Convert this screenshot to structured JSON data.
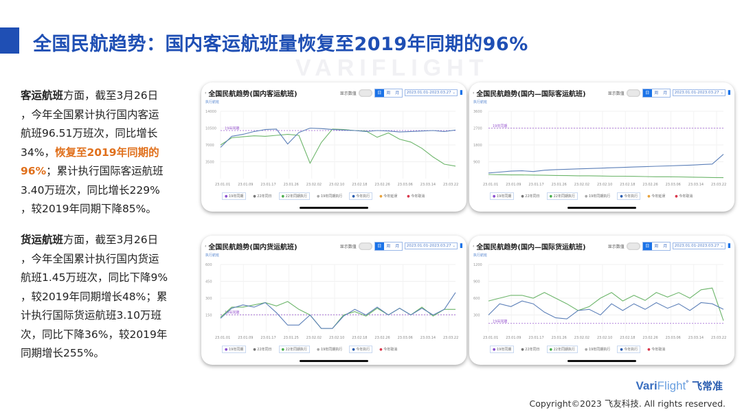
{
  "title": "全国民航趋势：国内客运航班量恢复至2019年同期的96%",
  "watermark": "VARIFLIGHT",
  "passenger_text": {
    "lines": [
      {
        "bold": "客运航班",
        "text": "方面，截至3月26日"
      },
      {
        "text": "，今年全国累计执行国内客运"
      },
      {
        "text": "航班96.51万班次，同比增长"
      },
      {
        "text": "34%，",
        "highlight": "恢复至2019年同期的"
      },
      {
        "highlight_pre": "96%",
        "text": "；累计执行国际客运航班"
      },
      {
        "text": "3.40万班次，同比增长229%"
      },
      {
        "text": "，较2019年同期下降85%。"
      }
    ]
  },
  "cargo_text": {
    "lines": [
      {
        "bold": "货运航班",
        "text": "方面，截至3月26日"
      },
      {
        "text": "，今年全国累计执行国内货运"
      },
      {
        "text": "航班1.45万班次，同比下降9%"
      },
      {
        "text": "，较2019年同期增长48%；累"
      },
      {
        "text": "计执行国际货运航班3.10万班"
      },
      {
        "text": "次，同比下降36%，较2019年"
      },
      {
        "text": "同期增长255%。"
      }
    ]
  },
  "controls": {
    "show_values": "显示数值",
    "day": "日",
    "week": "周",
    "month": "月",
    "date_range": "2023.01.01-2023.03.27 ⌄",
    "y_unit": "执行航班",
    "ref_label": "19年同期"
  },
  "legend": [
    "19年同期",
    "22年同日",
    "22年同期执行",
    "19年同期执行",
    "今年执行",
    "今年延误",
    "今年取消"
  ],
  "colors": {
    "accent": "#1f4fb4",
    "highlight": "#e0701c",
    "current": "#5b7fb8",
    "prev": "#6cb56a",
    "reference": "#9a5ad0"
  },
  "chart_data": [
    {
      "type": "line",
      "title": "全国民航趋势(国内客运航班)",
      "ylim": [
        0,
        14000
      ],
      "yticks": [
        "14000",
        "10500",
        "7000",
        "3500"
      ],
      "xticks": [
        "23.01.01",
        "23.01.09",
        "23.01.17",
        "23.01.26",
        "23.02.02",
        "23.02.10",
        "23.02.18",
        "23.02.26",
        "23.03.06",
        "23.03.14",
        "23.03.22"
      ],
      "reference": 10000,
      "series": [
        {
          "key": "current",
          "name": "今年执行",
          "values": [
            6500,
            8800,
            9200,
            9800,
            10200,
            10300,
            7200,
            9600,
            10500,
            10400,
            10200,
            10100,
            10000,
            9800,
            10000,
            9900,
            9700,
            9800,
            9900,
            10000,
            9800,
            10100
          ]
        },
        {
          "key": "prev",
          "name": "22年同期执行",
          "values": [
            7000,
            8500,
            8700,
            8900,
            8800,
            9000,
            9200,
            9000,
            3200,
            7500,
            10300,
            10200,
            10000,
            9900,
            8600,
            9500,
            8200,
            7600,
            6300,
            4500,
            3000,
            2600
          ]
        }
      ]
    },
    {
      "type": "line",
      "title": "全国民航趋势(国内—国际客运航班)",
      "ylim": [
        0,
        3600
      ],
      "yticks": [
        "3600",
        "2700",
        "1800",
        "900"
      ],
      "xticks": [
        "23.01.01",
        "23.01.09",
        "23.01.17",
        "23.01.26",
        "23.02.02",
        "23.02.10",
        "23.02.18",
        "23.02.26",
        "23.03.06",
        "23.03.14",
        "23.03.22"
      ],
      "reference": 2700,
      "series": [
        {
          "key": "current",
          "name": "今年执行",
          "values": [
            300,
            350,
            400,
            420,
            380,
            450,
            480,
            500,
            520,
            540,
            560,
            580,
            600,
            620,
            640,
            660,
            680,
            700,
            720,
            750,
            780,
            1300
          ]
        },
        {
          "key": "prev",
          "name": "22年同期执行",
          "values": [
            220,
            210,
            200,
            200,
            190,
            180,
            170,
            160,
            150,
            150,
            140,
            130,
            130,
            120,
            110,
            100,
            100,
            90,
            80,
            70,
            60,
            50
          ]
        }
      ]
    },
    {
      "type": "line",
      "title": "全国民航趋势(国内货运航班)",
      "ylim": [
        0,
        600
      ],
      "yticks": [
        "600",
        "450",
        "300",
        "150"
      ],
      "xticks": [
        "23.01.01",
        "23.01.09",
        "23.01.17",
        "23.01.25",
        "23.02.02",
        "23.02.10",
        "23.02.18",
        "23.02.26",
        "23.03.06",
        "23.03.14",
        "23.03.22"
      ],
      "reference": 152,
      "series": [
        {
          "key": "current",
          "name": "今年执行",
          "values": [
            120,
            210,
            240,
            220,
            260,
            170,
            60,
            60,
            150,
            30,
            30,
            140,
            200,
            150,
            220,
            150,
            210,
            150,
            210,
            150,
            200,
            350
          ]
        },
        {
          "key": "prev",
          "name": "22年同期执行",
          "values": [
            130,
            220,
            220,
            240,
            260,
            230,
            270,
            200,
            150,
            30,
            30,
            150,
            180,
            140,
            210,
            150,
            210,
            150,
            220,
            140,
            200,
            200
          ]
        }
      ]
    },
    {
      "type": "line",
      "title": "全国民航趋势(国内—国际货运航班)",
      "ylim": [
        0,
        1200
      ],
      "yticks": [
        "1200",
        "900",
        "600",
        "300"
      ],
      "xticks": [
        "23.01.01",
        "23.01.09",
        "23.01.17",
        "23.01.26",
        "23.02.02",
        "23.02.10",
        "23.02.18",
        "23.02.26",
        "23.03.06",
        "23.03.14",
        "23.03.22"
      ],
      "reference": 150,
      "series": [
        {
          "key": "current",
          "name": "今年执行",
          "values": [
            300,
            500,
            450,
            550,
            500,
            350,
            250,
            230,
            380,
            400,
            300,
            500,
            380,
            500,
            400,
            520,
            420,
            500,
            380,
            520,
            500,
            400
          ]
        },
        {
          "key": "prev",
          "name": "22年同期执行",
          "values": [
            550,
            600,
            650,
            650,
            600,
            700,
            600,
            500,
            380,
            450,
            600,
            700,
            550,
            650,
            560,
            700,
            620,
            700,
            600,
            750,
            780,
            200
          ]
        }
      ]
    }
  ],
  "logo": {
    "brand_a": "Vari",
    "brand_b": "Flight",
    "reg": "°",
    "cn": "飞常准"
  },
  "copyright": "Copyright©2023 飞友科技. All rights reserved."
}
